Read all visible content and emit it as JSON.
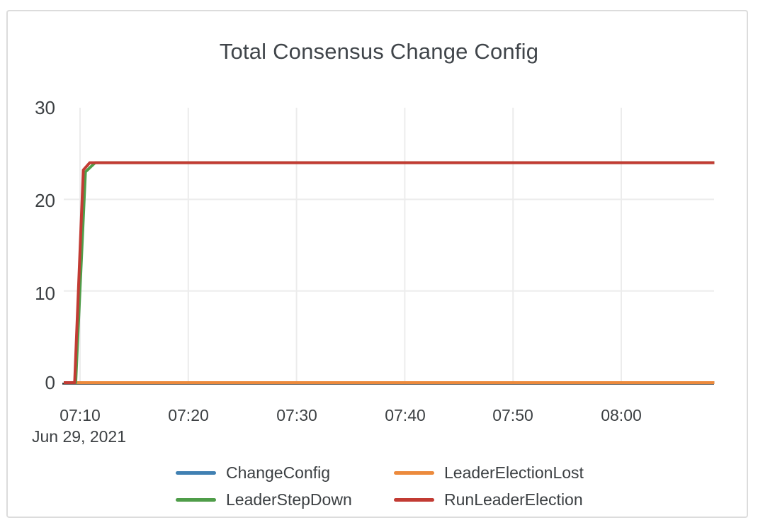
{
  "card": {
    "background": "#ffffff",
    "border_color": "#dcdcdc"
  },
  "text_color": "#3c4043",
  "chart_data": {
    "type": "line",
    "title": "Total Consensus Change Config",
    "x_axis": {
      "unit": "time (HH:MM), stored as minutes after 07:00",
      "tick_labels": [
        "07:10",
        "07:20",
        "07:30",
        "07:40",
        "07:50",
        "08:00"
      ],
      "tick_minutes": [
        10,
        20,
        30,
        40,
        50,
        60
      ],
      "date_label": "Jun 29, 2021",
      "range_minutes": [
        8.5,
        68.6
      ]
    },
    "y_axis": {
      "tick_labels": [
        "30",
        "20",
        "10",
        "0"
      ],
      "tick_values": [
        30,
        20,
        10,
        0
      ],
      "gridline_values": [
        20,
        10
      ],
      "range": [
        0,
        30
      ]
    },
    "grid": {
      "color": "#ececec",
      "axis_line_color": "#2e2e2e",
      "legend_position": "bottom"
    },
    "flat_plateau_value": 24,
    "series": [
      {
        "name": "ChangeConfig",
        "color": "#4080b2",
        "points": [
          [
            8.5,
            0
          ],
          [
            68.6,
            0
          ]
        ]
      },
      {
        "name": "LeaderElectionLost",
        "color": "#ec8a3c",
        "points": [
          [
            8.5,
            0
          ],
          [
            68.6,
            0
          ]
        ]
      },
      {
        "name": "LeaderStepDown",
        "color": "#4f9d49",
        "points": [
          [
            8.5,
            0
          ],
          [
            9.6,
            0
          ],
          [
            10.5,
            23
          ],
          [
            11.4,
            24
          ],
          [
            68.6,
            24
          ]
        ]
      },
      {
        "name": "RunLeaderElection",
        "color": "#c23b33",
        "points": [
          [
            8.5,
            0
          ],
          [
            9.5,
            0
          ],
          [
            10.3,
            23.2
          ],
          [
            10.9,
            24
          ],
          [
            68.6,
            24
          ]
        ]
      }
    ]
  }
}
